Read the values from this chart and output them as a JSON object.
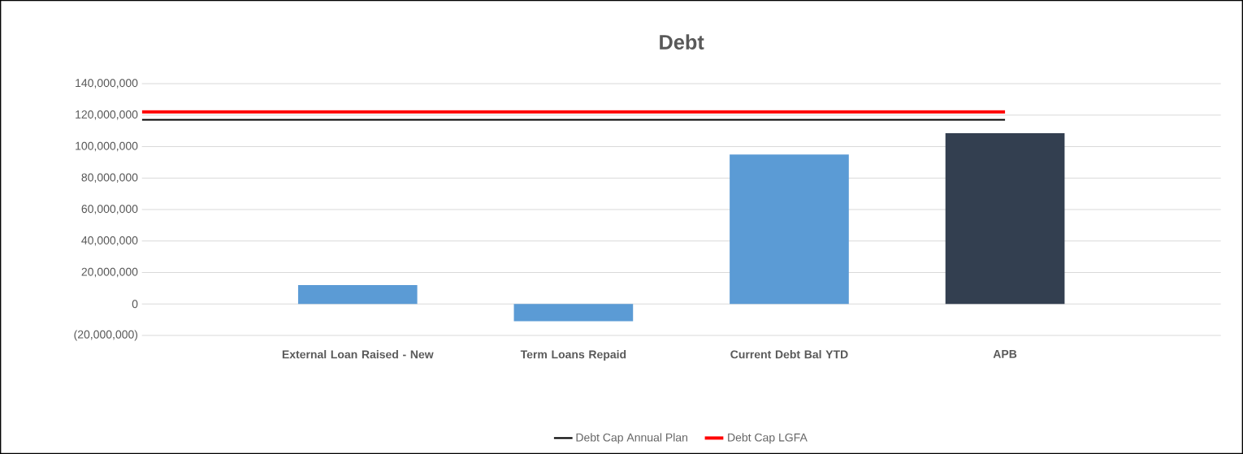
{
  "chart_data": {
    "type": "bar",
    "title": "Debt",
    "categories": [
      null,
      "External Loan Raised - New",
      "Term Loans Repaid",
      "Current Debt Bal YTD",
      "APB"
    ],
    "series": [
      {
        "colors": [
          "#5b9bd5",
          "#5b9bd5",
          "#5b9bd5",
          "#5b9bd5",
          "#333f50"
        ],
        "values": [
          null,
          12000000,
          -11000000,
          95000000,
          108500000
        ]
      },
      {
        "type": "line",
        "name": "Debt Cap Annual Plan",
        "color": "#000000",
        "values": [
          117000000,
          117000000,
          117000000,
          117000000,
          117000000
        ]
      },
      {
        "type": "line",
        "name": "Debt Cap LGFA",
        "color": "#ff0000",
        "values": [
          122000000,
          122000000,
          122000000,
          122000000,
          122000000
        ]
      }
    ],
    "ylim": [
      -20000000,
      140000000
    ],
    "yticks": [
      {
        "value": -20000000,
        "label": "(20,000,000)"
      },
      {
        "value": 0,
        "label": "0"
      },
      {
        "value": 20000000,
        "label": "20,000,000"
      },
      {
        "value": 40000000,
        "label": "40,000,000"
      },
      {
        "value": 60000000,
        "label": "60,000,000"
      },
      {
        "value": 80000000,
        "label": "80,000,000"
      },
      {
        "value": 100000000,
        "label": "100,000,000"
      },
      {
        "value": 120000000,
        "label": "120,000,000"
      },
      {
        "value": 140000000,
        "label": "140,000,000"
      }
    ],
    "grid": "y",
    "legend": "bottom",
    "marker": "none",
    "line_style": "solid"
  }
}
